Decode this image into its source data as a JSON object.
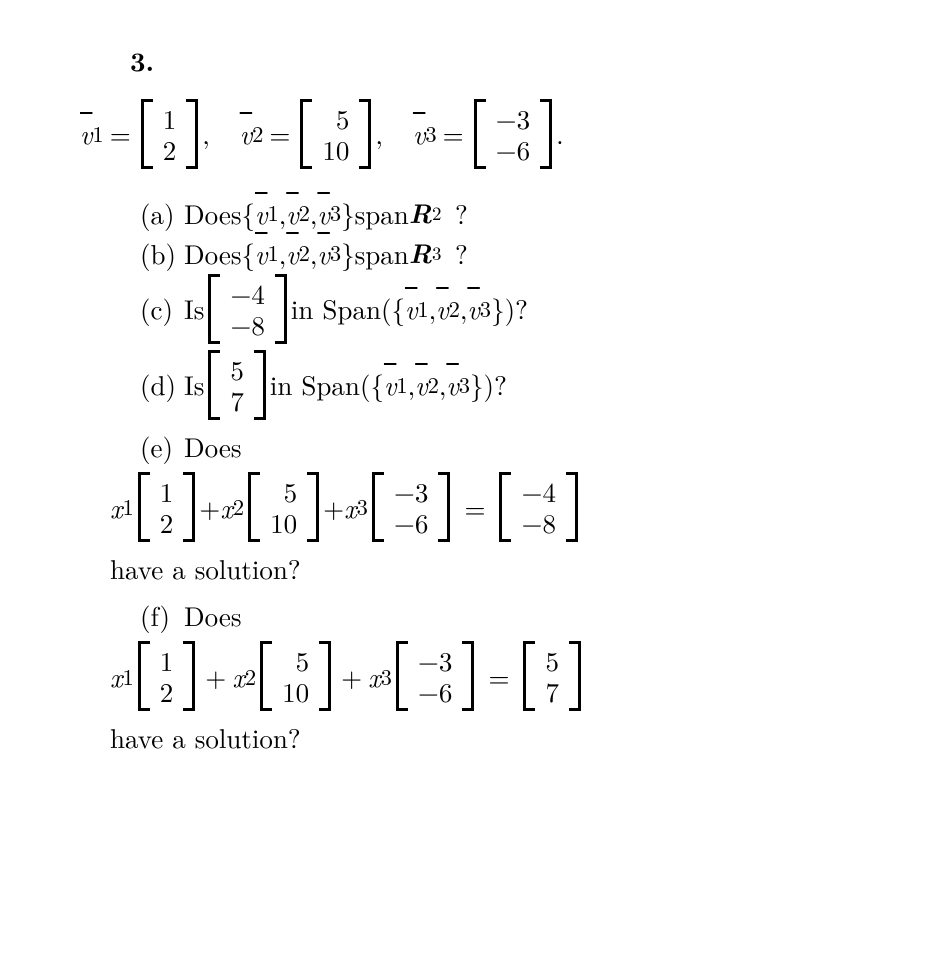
{
  "problem_number": "3.",
  "v": {
    "v1": "v",
    "v2": "v",
    "v3": "v",
    "s1": "1",
    "s2": "2",
    "s3": "3"
  },
  "m": {
    "v1": [
      "1",
      "2"
    ],
    "v2": [
      "5",
      "10"
    ],
    "v3": [
      "−3",
      "−6"
    ],
    "c": [
      "−4",
      "−8"
    ],
    "d": [
      "5",
      "7"
    ],
    "e_rhs": [
      "−4",
      "−8"
    ],
    "f_rhs": [
      "5",
      "7"
    ]
  },
  "sym": {
    "eq": "=",
    "comma": ",   ",
    "dot": ".",
    "plus": "+",
    "x": "x",
    "s1": "1",
    "s2": "2",
    "s3": "3",
    "lb": "{",
    "rb": "}",
    "lp": "(",
    "rp": ")",
    "q": "?",
    "R": "R",
    "sq": "2",
    "cu": "3"
  },
  "labels": {
    "a": "(a)",
    "b": "(b)",
    "c": "(c)",
    "d": "(d)",
    "e": "(e)",
    "f": "(f)",
    "does": "Does ",
    "is": "Is ",
    "span": " span ",
    "Span": " in Span ",
    "have": "have a solution?"
  }
}
